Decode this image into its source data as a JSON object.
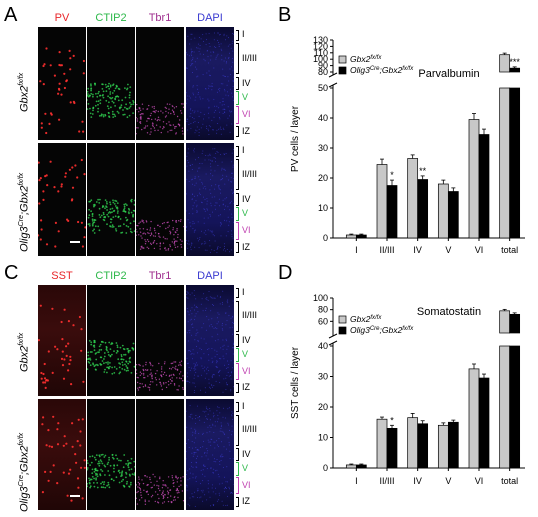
{
  "panels": {
    "A": {
      "letter": "A",
      "channels": [
        "PV",
        "CTIP2",
        "Tbr1",
        "DAPI"
      ],
      "channel_colors": [
        "#e8262a",
        "#2db84a",
        "#a0308f",
        "#3a3ad0"
      ],
      "row1_genotype": "Gbx2",
      "row1_sup": "fx/fx",
      "row2_genotype_a": "Olig3",
      "row2_sup_a": "Cre",
      "row2_genotype_b": ";Gbx2",
      "row2_sup_b": "fx/fx"
    },
    "B": {
      "letter": "B"
    },
    "C": {
      "letter": "C",
      "channels": [
        "SST",
        "CTIP2",
        "Tbr1",
        "DAPI"
      ],
      "channel_colors": [
        "#e8262a",
        "#2db84a",
        "#a0308f",
        "#3a3ad0"
      ],
      "row1_genotype": "Gbx2",
      "row1_sup": "fx/fx",
      "row2_genotype_a": "Olig3",
      "row2_sup_a": "Cre",
      "row2_genotype_b": ";Gbx2",
      "row2_sup_b": "fx/fx"
    },
    "D": {
      "letter": "D"
    }
  },
  "layers": [
    {
      "label": "I",
      "color": "#000000"
    },
    {
      "label": "II/III",
      "color": "#000000"
    },
    {
      "label": "IV",
      "color": "#000000"
    },
    {
      "label": "V",
      "color": "#2db84a"
    },
    {
      "label": "VI",
      "color": "#c040b0"
    },
    {
      "label": "IZ",
      "color": "#000000"
    }
  ],
  "chart_data": [
    {
      "type": "bar",
      "title": "Parvalbumin",
      "ylabel": "PV cells / layer",
      "categories": [
        "I",
        "II/III",
        "IV",
        "V",
        "VI",
        "total"
      ],
      "series": [
        {
          "name": "Gbx2 fx/fx",
          "name_main": "Gbx2",
          "name_sup": "fx/fx",
          "color": "#c8c8c8",
          "values": [
            1,
            24.5,
            26.5,
            18,
            39.5,
            107
          ],
          "errors": [
            0.3,
            1.8,
            1.2,
            1.3,
            2,
            2.5
          ]
        },
        {
          "name": "Olig3 Cre;Gbx2 fx/fx",
          "name_main": "Olig3",
          "name_sup": "Cre",
          "name_main2": ";Gbx2",
          "name_sup2": "fx/fx",
          "color": "#000000",
          "values": [
            1,
            17.5,
            19.5,
            15.5,
            34.5,
            86
          ],
          "errors": [
            0.3,
            1.8,
            1.2,
            1.2,
            1.8,
            2
          ]
        }
      ],
      "significance": [
        "",
        "*",
        "**",
        "",
        "",
        "***"
      ],
      "ylim_lower": [
        0,
        50
      ],
      "ylim_upper": [
        80,
        130
      ],
      "yticks_lower": [
        0,
        10,
        20,
        30,
        40,
        50
      ],
      "yticks_upper": [
        80,
        90,
        100,
        110,
        120,
        130
      ],
      "legend": "top-left"
    },
    {
      "type": "bar",
      "title": "Somatostatin",
      "ylabel": "SST cells / layer",
      "categories": [
        "I",
        "II/III",
        "IV",
        "V",
        "VI",
        "total"
      ],
      "series": [
        {
          "name": "Gbx2 fx/fx",
          "name_main": "Gbx2",
          "name_sup": "fx/fx",
          "color": "#c8c8c8",
          "values": [
            1,
            16,
            16.5,
            14,
            32.5,
            78
          ],
          "errors": [
            0.3,
            0.7,
            1.4,
            0.8,
            1.6,
            2.5
          ]
        },
        {
          "name": "Olig3 Cre;Gbx2 fx/fx",
          "name_main": "Olig3",
          "name_sup": "Cre",
          "name_main2": ";Gbx2",
          "name_sup2": "fx/fx",
          "color": "#000000",
          "values": [
            1,
            13,
            14.5,
            15,
            29.5,
            72
          ],
          "errors": [
            0.3,
            1,
            1,
            0.7,
            1.3,
            2.5
          ]
        }
      ],
      "significance": [
        "",
        "*",
        "",
        "",
        "",
        ""
      ],
      "ylim_lower": [
        0,
        40
      ],
      "ylim_upper": [
        40,
        100
      ],
      "yticks_lower": [
        0,
        10,
        20,
        30,
        40
      ],
      "yticks_upper": [
        40,
        60,
        80,
        100
      ],
      "legend": "top-left"
    }
  ]
}
